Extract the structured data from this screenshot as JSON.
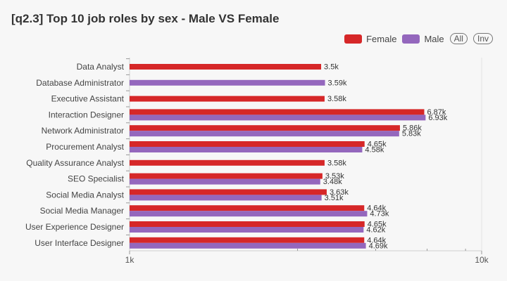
{
  "title": "[q2.3] Top 10 job roles by sex - Male VS Female",
  "legend": {
    "buttons": {
      "all": "All",
      "inv": "Inv"
    }
  },
  "colors": {
    "Female": "#d62728",
    "Male": "#9467bd"
  },
  "chart_data": {
    "type": "bar",
    "orientation": "horizontal",
    "title": "[q2.3] Top 10 job roles by sex - Male VS Female",
    "xscale": "log",
    "xlim": [
      1000,
      10000
    ],
    "xticks": [
      {
        "value": 1000,
        "label": "1k"
      },
      {
        "value": 10000,
        "label": "10k"
      }
    ],
    "legend_position": "top-right",
    "categories": [
      "Data Analyst",
      "Database Administrator",
      "Executive Assistant",
      "Interaction Designer",
      "Network Administrator",
      "Procurement Analyst",
      "Quality Assurance Analyst",
      "SEO Specialist",
      "Social Media Analyst",
      "Social Media Manager",
      "User Experience Designer",
      "User Interface Designer"
    ],
    "series": [
      {
        "name": "Female",
        "values": [
          3500,
          null,
          3580,
          6870,
          5860,
          4650,
          3580,
          3530,
          3630,
          4640,
          4650,
          4640
        ],
        "labels": [
          "3.5k",
          null,
          "3.58k",
          "6.87k",
          "5.86k",
          "4.65k",
          "3.58k",
          "3.53k",
          "3.63k",
          "4.64k",
          "4.65k",
          "4.64k"
        ]
      },
      {
        "name": "Male",
        "values": [
          null,
          3590,
          null,
          6930,
          5830,
          4580,
          null,
          3480,
          3510,
          4730,
          4620,
          4690
        ],
        "labels": [
          null,
          "3.59k",
          null,
          "6.93k",
          "5.83k",
          "4.58k",
          null,
          "3.48k",
          "3.51k",
          "4.73k",
          "4.62k",
          "4.69k"
        ]
      }
    ]
  }
}
